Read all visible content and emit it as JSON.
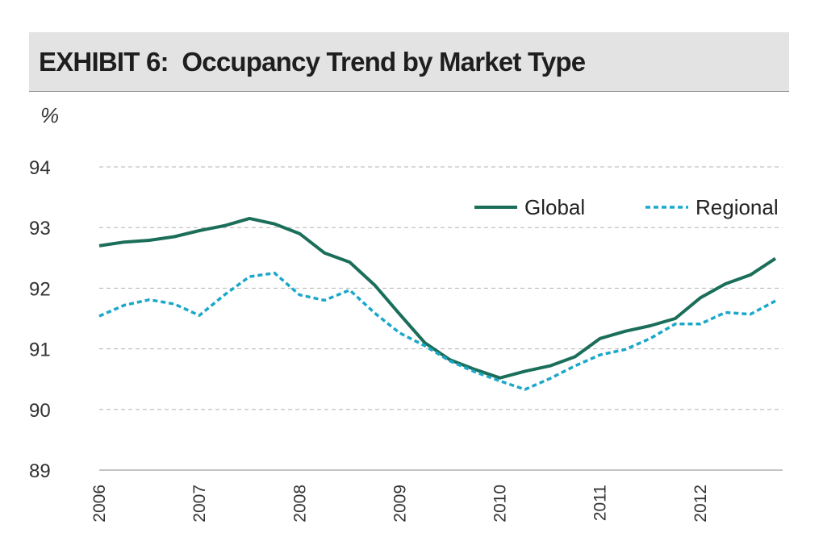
{
  "header": {
    "title": "EXHIBIT 6:  Occupancy Trend by Market Type"
  },
  "chart_data": {
    "type": "line",
    "title": "EXHIBIT 6:  Occupancy Trend by Market Type",
    "xlabel": "",
    "ylabel": "%",
    "ylim": [
      89,
      94
    ],
    "xlim": [
      2006,
      2012.75
    ],
    "yticks": [
      89,
      90,
      91,
      92,
      93,
      94
    ],
    "xticks": [
      "2006",
      "2007",
      "2008",
      "2009",
      "2010",
      "2011",
      "2012"
    ],
    "grid": true,
    "legend_position": "top-right",
    "series": [
      {
        "name": "Global",
        "color": "#1b6e59",
        "style": "solid",
        "x": [
          2006,
          2006.25,
          2006.5,
          2006.75,
          2007,
          2007.25,
          2007.5,
          2007.75,
          2008,
          2008.25,
          2008.5,
          2008.75,
          2009,
          2009.25,
          2009.5,
          2009.75,
          2010,
          2010.25,
          2010.5,
          2010.75,
          2011,
          2011.25,
          2011.5,
          2011.75,
          2012,
          2012.25,
          2012.5,
          2012.75
        ],
        "values": [
          92.7,
          92.76,
          92.79,
          92.85,
          92.95,
          93.03,
          93.15,
          93.06,
          92.9,
          92.58,
          92.43,
          92.05,
          91.57,
          91.1,
          90.82,
          90.66,
          90.52,
          90.63,
          90.72,
          90.87,
          91.17,
          91.29,
          91.38,
          91.5,
          91.84,
          92.07,
          92.22,
          92.49
        ]
      },
      {
        "name": "Regional",
        "color": "#1aa8c9",
        "style": "dashed",
        "x": [
          2006,
          2006.25,
          2006.5,
          2006.75,
          2007,
          2007.25,
          2007.5,
          2007.75,
          2008,
          2008.25,
          2008.5,
          2008.75,
          2009,
          2009.25,
          2009.5,
          2009.75,
          2010,
          2010.25,
          2010.5,
          2010.75,
          2011,
          2011.25,
          2011.5,
          2011.75,
          2012,
          2012.25,
          2012.5,
          2012.75
        ],
        "values": [
          91.54,
          91.72,
          91.81,
          91.74,
          91.55,
          91.89,
          92.19,
          92.25,
          91.89,
          91.8,
          91.97,
          91.59,
          91.26,
          91.05,
          90.8,
          90.62,
          90.47,
          90.33,
          90.51,
          90.72,
          90.9,
          90.99,
          91.17,
          91.41,
          91.41,
          91.6,
          91.57,
          91.79
        ]
      }
    ]
  }
}
